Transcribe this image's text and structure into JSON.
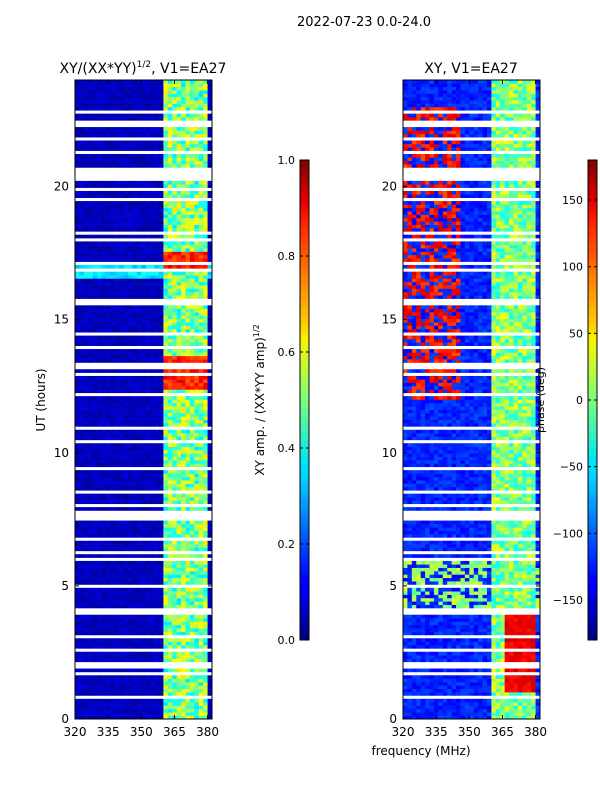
{
  "suptitle": "2022-07-23 0.0-24.0",
  "chart_data": [
    {
      "type": "heatmap",
      "title": "XY/(XX*YY)$^{1/2}$, V1=EA27",
      "title_main": "XY/(XX*YY)",
      "title_sup": "1/2",
      "title_tail": ", V1=EA27",
      "xlabel": "",
      "ylabel": "UT (hours)",
      "xlim": [
        320,
        382
      ],
      "ylim": [
        0,
        24
      ],
      "xticks": [
        320,
        335,
        350,
        365,
        380
      ],
      "yticks": [
        0,
        5,
        10,
        15,
        20
      ],
      "colorbar": {
        "label": "XY amp. / (XX*YY amp)$^{1/2}$",
        "label_main": "XY amp. / (XX*YY amp)",
        "label_sup": "1/2",
        "range": [
          0.0,
          1.0
        ],
        "ticks": [
          "0.0",
          "0.2",
          "0.4",
          "0.6",
          "0.8",
          "1.0"
        ],
        "colormap": "jet"
      },
      "notes": "Low amplitude (~0.05) across 320-360 MHz; elevated amplitude (0.4-0.7) in 361-379 MHz band; high values (~0.8-0.9) near 12.5-13.5 h and 17-17.5 h in 361-379 MHz; many flagged (white) time rows."
    },
    {
      "type": "heatmap",
      "title": "XY, V1=EA27",
      "xlabel": "frequency (MHz)",
      "ylabel": "",
      "xlim": [
        320,
        382
      ],
      "ylim": [
        0,
        24
      ],
      "xticks": [
        320,
        335,
        350,
        365,
        380
      ],
      "yticks": [
        0,
        5,
        10,
        15,
        20
      ],
      "colorbar": {
        "label": "phase (deg)",
        "range": [
          -180,
          180
        ],
        "ticks": [
          "−150",
          "−100",
          "−50",
          "0",
          "50",
          "100",
          "150"
        ],
        "tick_values": [
          -150,
          -100,
          -50,
          0,
          50,
          100,
          150
        ],
        "colormap": "jet"
      },
      "notes": "Phase mostly near -150 deg (blue) with patches near +120 deg (red) at 13-23 h in 320-345 MHz, green/cyan (~0 to +30 deg) in the 361-379 MHz band; many flagged rows."
    }
  ]
}
